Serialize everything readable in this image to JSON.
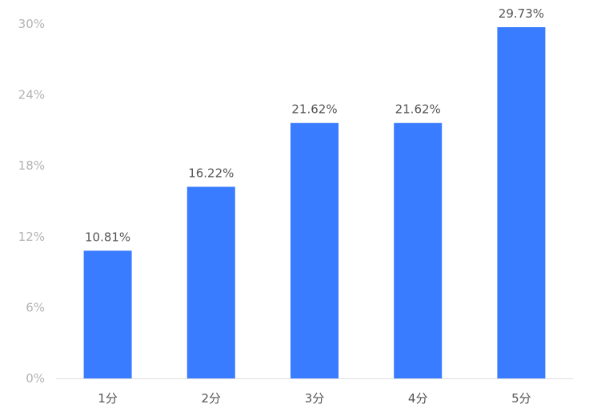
{
  "chart_data": {
    "type": "bar",
    "categories": [
      "1分",
      "2分",
      "3分",
      "4分",
      "5分"
    ],
    "values": [
      10.81,
      16.22,
      21.62,
      21.62,
      29.73
    ],
    "data_labels": [
      "10.81%",
      "16.22%",
      "21.62%",
      "21.62%",
      "29.73%"
    ],
    "yticks": [
      {
        "value": 0,
        "label": "0%"
      },
      {
        "value": 6,
        "label": "6%"
      },
      {
        "value": 12,
        "label": "12%"
      },
      {
        "value": 18,
        "label": "18%"
      },
      {
        "value": 24,
        "label": "24%"
      },
      {
        "value": 30,
        "label": "30%"
      }
    ],
    "ylim": [
      0,
      30
    ],
    "grid": false,
    "bar_color": "#3a7cff",
    "axis_color": "#dddddd"
  }
}
